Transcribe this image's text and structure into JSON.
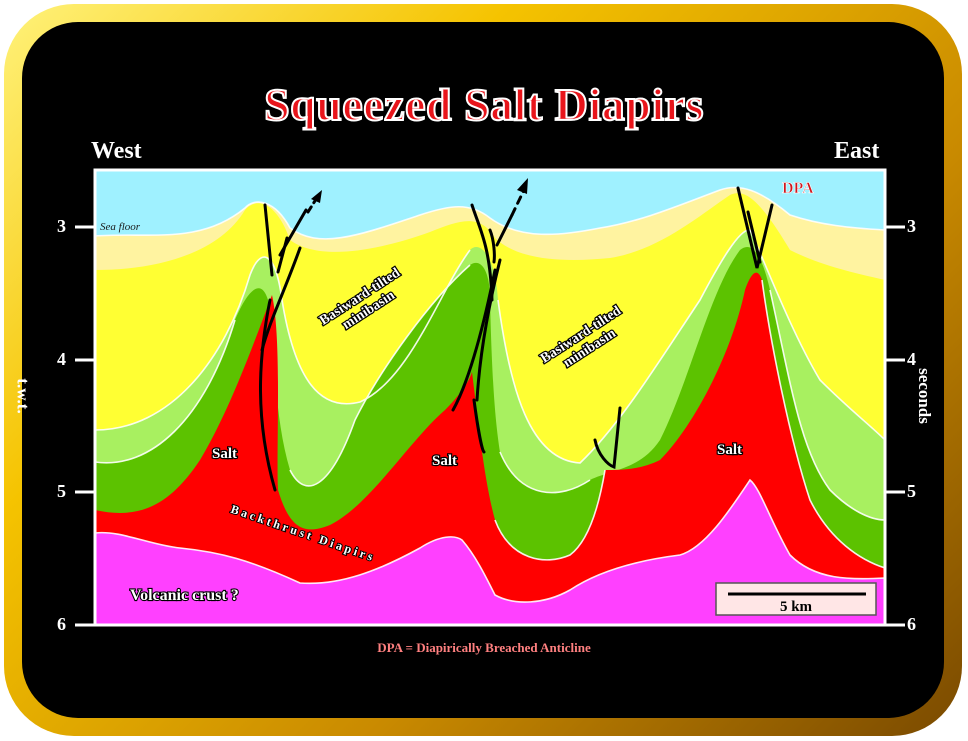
{
  "title": "Squeezed Salt Diapirs",
  "west_label": "West",
  "east_label": "East",
  "left_axis_label": "t.w.t.",
  "right_axis_label": "seconds",
  "ticks": [
    "3",
    "4",
    "5",
    "6"
  ],
  "labels": {
    "sea_floor": "Sea floor",
    "dpa": "DPA",
    "minibasin_1_line1": "Basiward-tilted",
    "minibasin_1_line2": "minibasin",
    "minibasin_2_line1": "Basiward-tilted",
    "minibasin_2_line2": "minibasin",
    "salt_1": "Salt",
    "salt_2": "Salt",
    "salt_3": "Salt",
    "backthrust": "Backthrust Diapirs",
    "volcanic": "Volcanic crust ?",
    "scale": "5 km"
  },
  "footnote": "DPA = Diapirically Breached Anticline",
  "colors": {
    "frame_gold": "#f5c300",
    "title_red": "#e8151b",
    "sea": "#9ff1ff",
    "pale_yellow": "#fff3a0",
    "yellow": "#ffff33",
    "light_green": "#a8f060",
    "green": "#5cc200",
    "salt": "#ff0000",
    "volcanic": "#ff40ff"
  }
}
